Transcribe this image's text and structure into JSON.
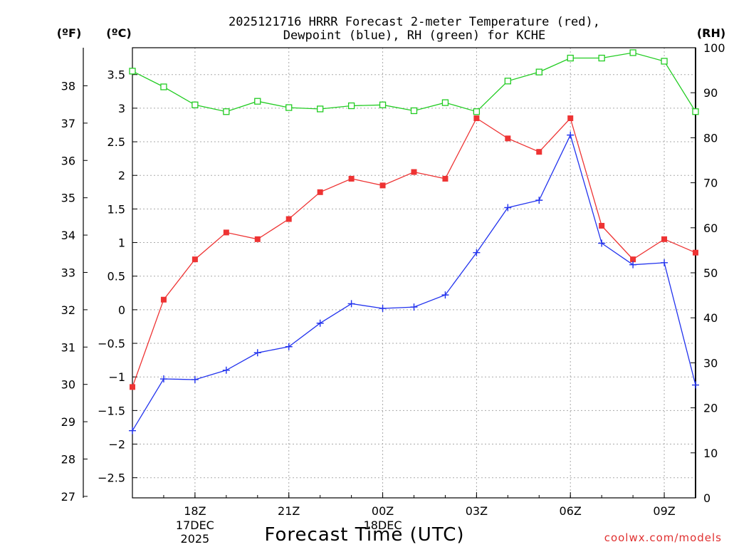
{
  "chart_data": {
    "type": "line",
    "title_line1": "2025121716 HRRR Forecast 2-meter Temperature (red),",
    "title_line2": "Dewpoint (blue), RH (green) for KCHE",
    "xlabel": "Forecast Time (UTC)",
    "credit": "coolwx.com/models",
    "unit_f": "(ºF)",
    "unit_c": "(ºC)",
    "unit_rh": "(RH)",
    "x_hours": [
      16,
      17,
      18,
      19,
      20,
      21,
      22,
      23,
      24,
      25,
      26,
      27,
      28,
      29,
      30,
      31,
      32,
      33,
      34
    ],
    "xlim": [
      16,
      34
    ],
    "x_ticks": [
      {
        "hour": 18,
        "label": "18Z",
        "sub1": "17DEC",
        "sub2": "2025"
      },
      {
        "hour": 21,
        "label": "21Z",
        "sub1": "",
        "sub2": ""
      },
      {
        "hour": 24,
        "label": "00Z",
        "sub1": "18DEC",
        "sub2": ""
      },
      {
        "hour": 27,
        "label": "03Z",
        "sub1": "",
        "sub2": ""
      },
      {
        "hour": 30,
        "label": "06Z",
        "sub1": "",
        "sub2": ""
      },
      {
        "hour": 33,
        "label": "09Z",
        "sub1": "",
        "sub2": ""
      }
    ],
    "c_ylim": [
      -2.8,
      3.9
    ],
    "c_ticks": [
      "-2.5",
      "-2",
      "-1.5",
      "-1",
      "-0.5",
      "0",
      "0.5",
      "1",
      "1.5",
      "2",
      "2.5",
      "3",
      "3.5"
    ],
    "f_ticks": [
      "27",
      "28",
      "29",
      "30",
      "31",
      "32",
      "33",
      "34",
      "35",
      "36",
      "37",
      "38"
    ],
    "rh_ylim": [
      0,
      100
    ],
    "rh_ticks": [
      "0",
      "10",
      "20",
      "30",
      "40",
      "50",
      "60",
      "70",
      "80",
      "90",
      "100"
    ],
    "series": [
      {
        "name": "Temperature",
        "color": "#ee3333",
        "marker": "filled-square",
        "values": [
          -1.15,
          0.15,
          0.75,
          1.15,
          1.05,
          1.35,
          1.75,
          1.95,
          1.85,
          2.05,
          1.95,
          2.85,
          2.55,
          2.35,
          2.85,
          1.25,
          0.75,
          1.05,
          0.85
        ]
      },
      {
        "name": "Dewpoint",
        "color": "#2233ee",
        "marker": "plus",
        "values": [
          -1.8,
          -1.03,
          -1.04,
          -0.9,
          -0.64,
          -0.55,
          -0.2,
          0.09,
          0.02,
          0.04,
          0.22,
          0.85,
          1.52,
          1.63,
          2.6,
          0.99,
          0.67,
          0.7,
          -1.12
        ]
      },
      {
        "name": "RH",
        "color": "#22cc22",
        "marker": "open-square",
        "axis": "rh",
        "values": [
          94.8,
          91.3,
          87.3,
          85.8,
          88.1,
          86.7,
          86.4,
          87.1,
          87.3,
          86.0,
          87.8,
          85.8,
          92.6,
          94.6,
          97.7,
          97.7,
          98.9,
          97.0,
          85.8
        ]
      }
    ]
  }
}
